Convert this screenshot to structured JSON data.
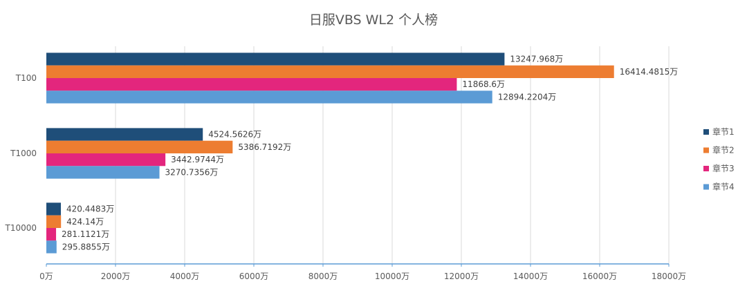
{
  "chart_data": {
    "type": "bar",
    "orientation": "horizontal",
    "title": "日服VBS WL2 个人榜",
    "categories": [
      "T100",
      "T1000",
      "T10000"
    ],
    "series": [
      {
        "name": "章节1",
        "color": "#1F4E79",
        "values": [
          13247.968,
          4524.5626,
          420.4483
        ],
        "labels": [
          "13247.968万",
          "4524.5626万",
          "420.4483万"
        ]
      },
      {
        "name": "章节2",
        "color": "#ED7D31",
        "values": [
          16414.4815,
          5386.7192,
          424.14
        ],
        "labels": [
          "16414.4815万",
          "5386.7192万",
          "424.14万"
        ]
      },
      {
        "name": "章节3",
        "color": "#E3267D",
        "values": [
          11868.6,
          3442.9744,
          281.1121
        ],
        "labels": [
          "11868.6万",
          "3442.9744万",
          "281.1121万"
        ]
      },
      {
        "name": "章节4",
        "color": "#5B9BD5",
        "values": [
          12894.2204,
          3270.7356,
          295.8855
        ],
        "labels": [
          "12894.2204万",
          "3270.7356万",
          "295.8855万"
        ]
      }
    ],
    "xlim": [
      0,
      18000
    ],
    "x_ticks": [
      0,
      2000,
      4000,
      6000,
      8000,
      10000,
      12000,
      14000,
      16000,
      18000
    ],
    "x_tick_labels": [
      "0万",
      "2000万",
      "4000万",
      "6000万",
      "8000万",
      "10000万",
      "12000万",
      "14000万",
      "16000万",
      "18000万"
    ],
    "xlabel": "",
    "ylabel": "",
    "grid": true,
    "legend_position": "right"
  },
  "colors": {
    "gridline": "#D9D9D9",
    "axis": "#5B9BD5"
  }
}
